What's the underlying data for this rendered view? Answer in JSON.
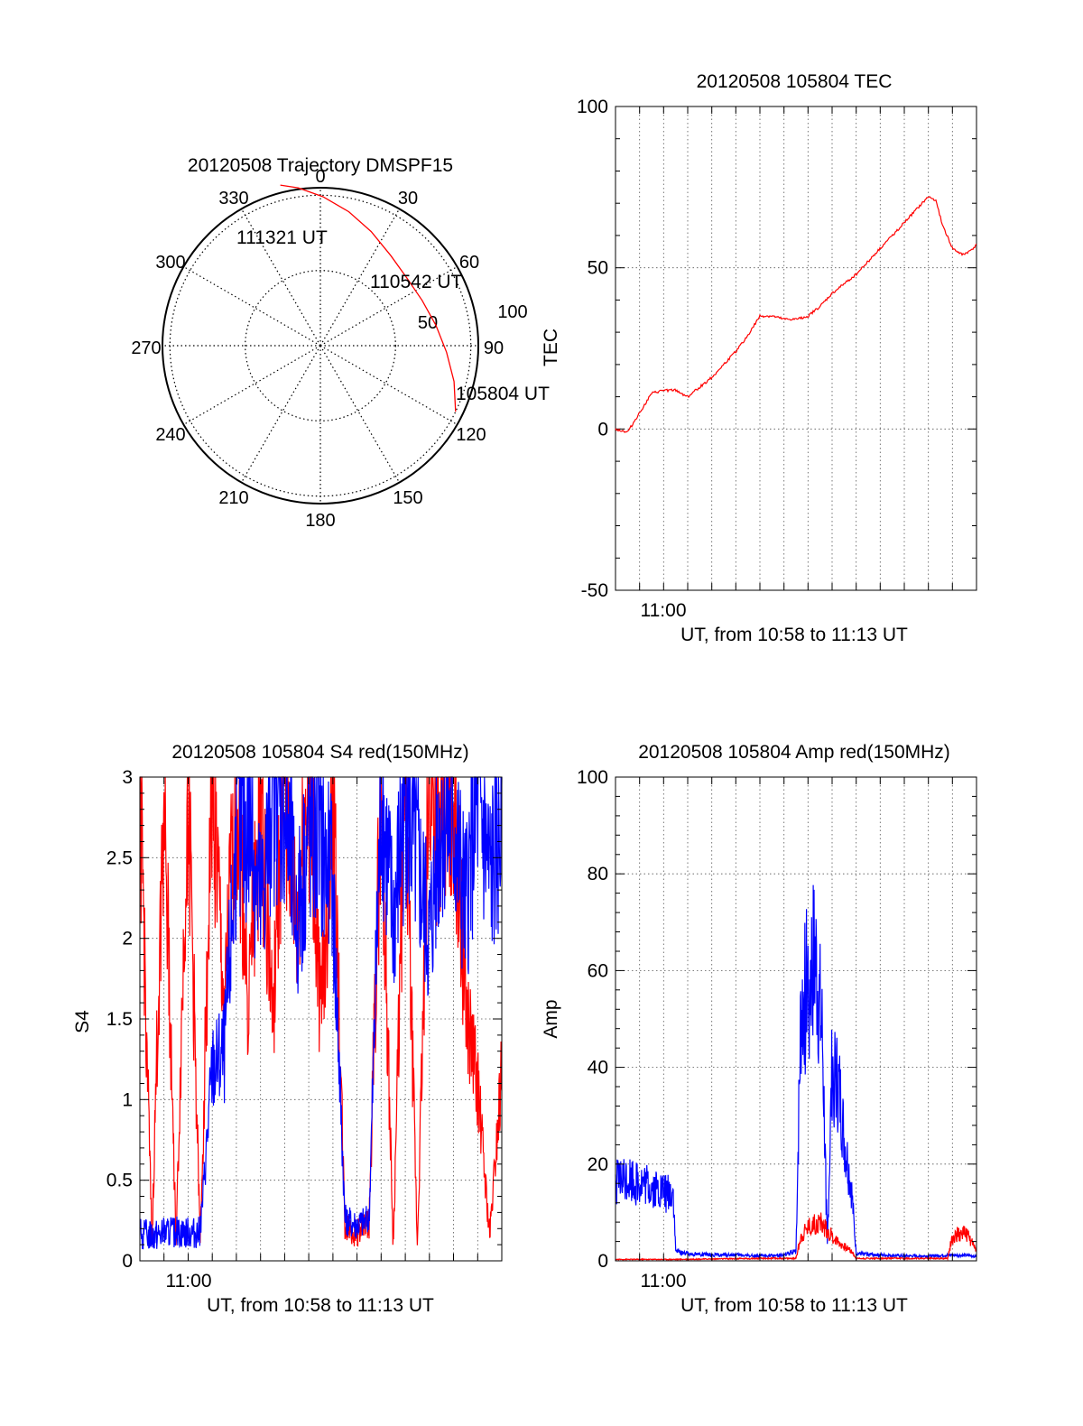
{
  "chart_data": [
    {
      "type": "polar-trajectory",
      "title": "20120508 Trajectory DMSPF15",
      "azimuth_ticks": [
        "0",
        "30",
        "60",
        "90",
        "120",
        "150",
        "180",
        "210",
        "240",
        "270",
        "300",
        "330"
      ],
      "radius_ticks": [
        "50",
        "100"
      ],
      "annotations": [
        "111321 UT",
        "110542 UT",
        "105804 UT"
      ],
      "trajectory": {
        "series_color": "#ff0000",
        "points": [
          {
            "az": 116,
            "zen": 100
          },
          {
            "az": 105,
            "zen": 92
          },
          {
            "az": 93,
            "zen": 84
          },
          {
            "az": 80,
            "zen": 78
          },
          {
            "az": 66,
            "zen": 74
          },
          {
            "az": 52,
            "zen": 73
          },
          {
            "az": 38,
            "zen": 76
          },
          {
            "az": 24,
            "zen": 83
          },
          {
            "az": 12,
            "zen": 91
          },
          {
            "az": 1,
            "zen": 99
          },
          {
            "az": -8,
            "zen": 106
          },
          {
            "az": -14,
            "zen": 110
          }
        ]
      }
    },
    {
      "type": "line",
      "title": "20120508 105804 TEC",
      "ylabel": "TEC",
      "xlabel": "UT, from 10:58 to 11:13 UT",
      "xtick_label": "11:00",
      "ylim": [
        -50,
        100
      ],
      "yticks": [
        "-50",
        "0",
        "50",
        "100"
      ],
      "grid": true,
      "series": [
        {
          "color": "#ff0000",
          "t": [
            0,
            0.5,
            1.0,
            1.5,
            2.0,
            2.5,
            3.0,
            3.5,
            4.0,
            4.5,
            5.0,
            5.5,
            6.0,
            6.5,
            7.0,
            7.5,
            8.0,
            8.5,
            9.0,
            9.5,
            10.0,
            10.5,
            11.0,
            11.5,
            12.0,
            12.5,
            13.0,
            13.3,
            13.6,
            14.0,
            14.4,
            14.7,
            15.0
          ],
          "values": [
            0,
            -1,
            5,
            11,
            12,
            12,
            10,
            13,
            16,
            20,
            24,
            29,
            35,
            35,
            34,
            34,
            35,
            38,
            42,
            45,
            48,
            52,
            56,
            60,
            64,
            68,
            72,
            71,
            63,
            56,
            54,
            55,
            57
          ]
        }
      ]
    },
    {
      "type": "line",
      "title": "20120508 105804 S4 red(150MHz)",
      "ylabel": "S4",
      "xlabel": "UT, from 10:58 to 11:13 UT",
      "xtick_label": "11:00",
      "ylim": [
        0,
        3
      ],
      "yticks": [
        "0",
        "0.5",
        "1",
        "1.5",
        "2",
        "2.5",
        "3"
      ],
      "grid": true,
      "series": [
        {
          "color": "#0000ff",
          "t": [
            0,
            0.5,
            1.0,
            1.5,
            2.0,
            2.5,
            3.0,
            3.5,
            4.0,
            4.5,
            5.0,
            5.5,
            6.0,
            6.5,
            7.0,
            7.5,
            8.0,
            8.5,
            9.0,
            9.5,
            10.0,
            10.5,
            11.0,
            11.5,
            12.0,
            12.5,
            13.0,
            13.5,
            14.0,
            14.5,
            15.0
          ],
          "values": [
            0.16,
            0.16,
            0.17,
            0.18,
            0.18,
            0.18,
            1.2,
            1.3,
            2.6,
            2.8,
            2.2,
            2.9,
            2.9,
            2.1,
            2.7,
            2.6,
            2.3,
            0.25,
            0.22,
            0.25,
            2.9,
            2.1,
            2.9,
            2.5,
            2.0,
            2.8,
            2.7,
            2.2,
            2.9,
            2.4,
            2.7
          ]
        },
        {
          "color": "#ff0000",
          "t": [
            0,
            0.5,
            1.0,
            1.5,
            2.0,
            2.5,
            3.0,
            3.5,
            4.0,
            4.5,
            5.0,
            5.5,
            6.0,
            6.5,
            7.0,
            7.5,
            8.0,
            8.5,
            9.0,
            9.5,
            10.0,
            10.5,
            11.0,
            11.5,
            12.0,
            12.5,
            13.0,
            13.5,
            14.0,
            14.5,
            15.0
          ],
          "values": [
            3.0,
            0.1,
            3.0,
            0.1,
            3.0,
            0.1,
            3.0,
            1.5,
            3.0,
            1.6,
            2.9,
            1.5,
            3.0,
            2.0,
            3.0,
            1.5,
            2.9,
            0.2,
            0.18,
            0.22,
            3.0,
            0.1,
            3.0,
            0.1,
            3.0,
            2.6,
            3.0,
            1.6,
            1.1,
            0.15,
            1.2
          ]
        }
      ]
    },
    {
      "type": "line",
      "title": "20120508 105804 Amp red(150MHz)",
      "ylabel": "Amp",
      "xlabel": "UT, from 10:58 to 11:13 UT",
      "xtick_label": "11:00",
      "ylim": [
        0,
        100
      ],
      "yticks": [
        "0",
        "20",
        "40",
        "60",
        "80",
        "100"
      ],
      "grid": true,
      "series": [
        {
          "color": "#0000ff",
          "t": [
            0,
            0.5,
            1.0,
            1.5,
            2.0,
            2.4,
            2.5,
            3.0,
            4.0,
            5.0,
            6.0,
            7.0,
            7.5,
            7.7,
            8.0,
            8.3,
            8.6,
            8.8,
            9.0,
            9.3,
            9.5,
            9.8,
            10.0,
            11.0,
            12.0,
            13.0,
            14.0,
            15.0
          ],
          "values": [
            16,
            17,
            16,
            15,
            14,
            14,
            2,
            1.5,
            1.2,
            1.2,
            1.0,
            1.2,
            2.0,
            50,
            58,
            62,
            45,
            3,
            40,
            35,
            25,
            15,
            1.5,
            1.2,
            1.0,
            1.0,
            1.2,
            1.0
          ]
        },
        {
          "color": "#ff0000",
          "t": [
            0,
            1.0,
            2.0,
            2.5,
            6.0,
            7.5,
            7.7,
            8.0,
            8.5,
            9.0,
            9.5,
            9.8,
            10.0,
            13.0,
            13.8,
            14.0,
            14.5,
            14.8,
            15.0
          ],
          "values": [
            0.3,
            0.3,
            0.3,
            0.3,
            0.5,
            0.5,
            5,
            7,
            8,
            5,
            3,
            2,
            0.5,
            0.5,
            0.5,
            5,
            6,
            4,
            2
          ]
        }
      ]
    }
  ]
}
